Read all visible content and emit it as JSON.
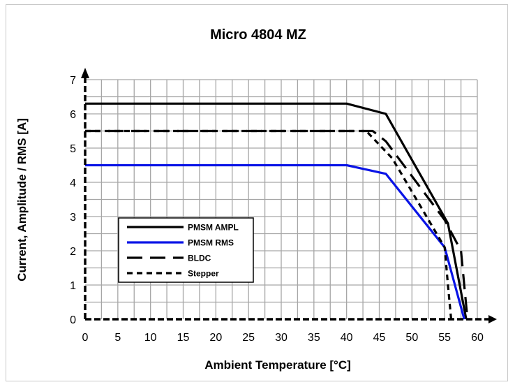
{
  "chart_data": {
    "type": "line",
    "title": "Micro 4804  MZ",
    "xlabel": "Ambient Temperature [°C]",
    "ylabel": "Current, Amplitude / RMS [A]",
    "xlim": [
      0,
      60
    ],
    "ylim": [
      0,
      7
    ],
    "xticks": [
      0,
      5,
      10,
      15,
      20,
      25,
      30,
      35,
      40,
      45,
      50,
      55,
      60
    ],
    "yticks": [
      0,
      1,
      2,
      3,
      4,
      5,
      6,
      7
    ],
    "grid": true,
    "legend_position": "left",
    "series": [
      {
        "name": "PMSM AMPL",
        "color": "#000000",
        "dash": "solid",
        "x": [
          0,
          40,
          46,
          55.5,
          58.3
        ],
        "y": [
          6.3,
          6.3,
          6.0,
          2.8,
          0
        ]
      },
      {
        "name": "PMSM RMS",
        "color": "#0a14e6",
        "dash": "solid",
        "x": [
          0,
          40,
          46,
          55,
          58
        ],
        "y": [
          4.5,
          4.5,
          4.25,
          2.1,
          0
        ]
      },
      {
        "name": "BLDC",
        "color": "#000000",
        "dash": "long-dash",
        "x": [
          0,
          44,
          46,
          55,
          57.5,
          58.5
        ],
        "y": [
          5.5,
          5.5,
          5.2,
          2.9,
          2.0,
          0
        ]
      },
      {
        "name": "Stepper",
        "color": "#000000",
        "dash": "short-dash",
        "x": [
          0,
          43,
          47,
          55,
          55.5,
          56
        ],
        "y": [
          5.5,
          5.5,
          4.7,
          2.1,
          1.0,
          0
        ]
      }
    ]
  }
}
